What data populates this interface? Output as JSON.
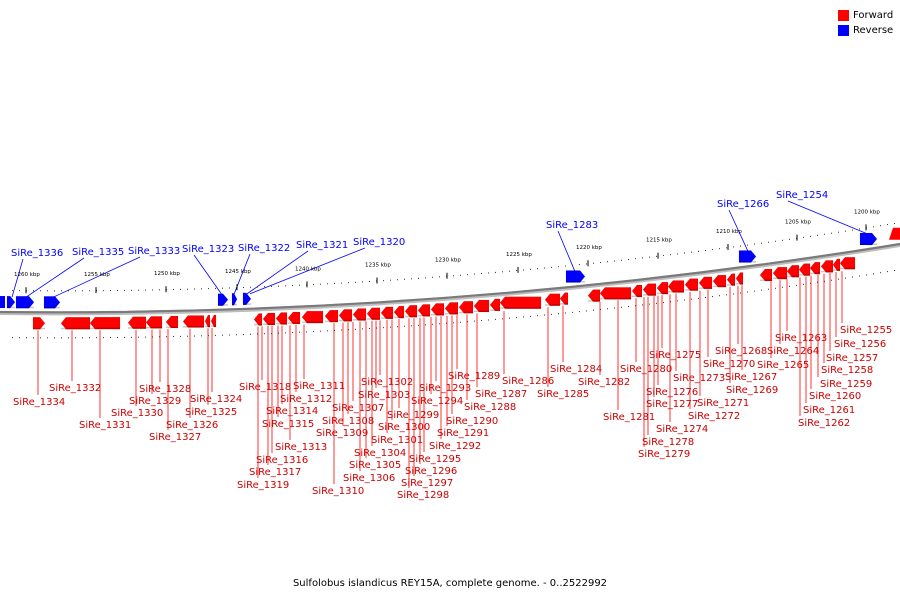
{
  "legend": {
    "forward_label": "Forward",
    "reverse_label": "Reverse",
    "forward_color": "#ff0000",
    "reverse_color": "#0000ff"
  },
  "caption": "Sulfolobus islandicus REY15A, complete genome. - 0..2522992",
  "axis": {
    "ticks": [
      "1260 kbp",
      "1255 kbp",
      "1250 kbp",
      "1245 kbp",
      "1240 kbp",
      "1235 kbp",
      "1230 kbp",
      "1225 kbp",
      "1220 kbp",
      "1215 kbp",
      "1210 kbp",
      "1205 kbp",
      "1200 kbp"
    ]
  },
  "reverse_labels": [
    "SiRe_1336",
    "SiRe_1335",
    "SiRe_1333",
    "SiRe_1323",
    "SiRe_1322",
    "SiRe_1321",
    "SiRe_1320",
    "SiRe_1283",
    "SiRe_1266",
    "SiRe_1254"
  ],
  "forward_labels": [
    "SiRe_1334",
    "SiRe_1332",
    "SiRe_1331",
    "SiRe_1330",
    "SiRe_1329",
    "SiRe_1328",
    "SiRe_1327",
    "SiRe_1326",
    "SiRe_1325",
    "SiRe_1324",
    "SiRe_1319",
    "SiRe_1318",
    "SiRe_1317",
    "SiRe_1316",
    "SiRe_1315",
    "SiRe_1314",
    "SiRe_1313",
    "SiRe_1312",
    "SiRe_1311",
    "SiRe_1310",
    "SiRe_1309",
    "SiRe_1308",
    "SiRe_1307",
    "SiRe_1306",
    "SiRe_1305",
    "SiRe_1304",
    "SiRe_1303",
    "SiRe_1302",
    "SiRe_1301",
    "SiRe_1300",
    "SiRe_1299",
    "SiRe_1298",
    "SiRe_1297",
    "SiRe_1296",
    "SiRe_1295",
    "SiRe_1294",
    "SiRe_1293",
    "SiRe_1292",
    "SiRe_1291",
    "SiRe_1290",
    "SiRe_1289",
    "SiRe_1288",
    "SiRe_1287",
    "SiRe_1286",
    "SiRe_1285",
    "SiRe_1284",
    "SiRe_1282",
    "SiRe_1281",
    "SiRe_1280",
    "SiRe_1279",
    "SiRe_1278",
    "SiRe_1277",
    "SiRe_1276",
    "SiRe_1275",
    "SiRe_1274",
    "SiRe_1273",
    "SiRe_1272",
    "SiRe_1271",
    "SiRe_1270",
    "SiRe_1269",
    "SiRe_1268",
    "SiRe_1267",
    "SiRe_1265",
    "SiRe_1264",
    "SiRe_1263",
    "SiRe_1262",
    "SiRe_1261",
    "SiRe_1260",
    "SiRe_1259",
    "SiRe_1258",
    "SiRe_1257",
    "SiRe_1256",
    "SiRe_1255"
  ]
}
